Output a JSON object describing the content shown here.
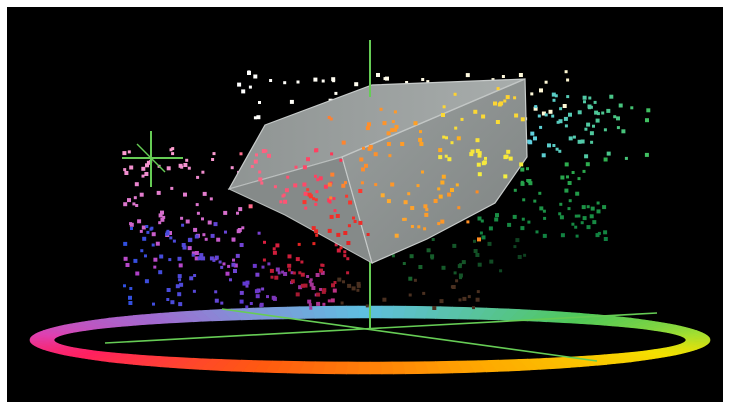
{
  "figure": {
    "kind": "3d-color-gamut-visualization",
    "background": "#000000",
    "border": "#ffffff",
    "axis_color": "#66cc55",
    "solid_fill": "#8d9291",
    "solid_edge": "#c7cbca",
    "hue_ring_colors": [
      "#5fbfe0",
      "#a06ad0",
      "#e040b0",
      "#ff2060",
      "#ff5a10",
      "#ffaa00",
      "#f4e000",
      "#a6e030",
      "#50c858",
      "#5fbfe0"
    ]
  }
}
